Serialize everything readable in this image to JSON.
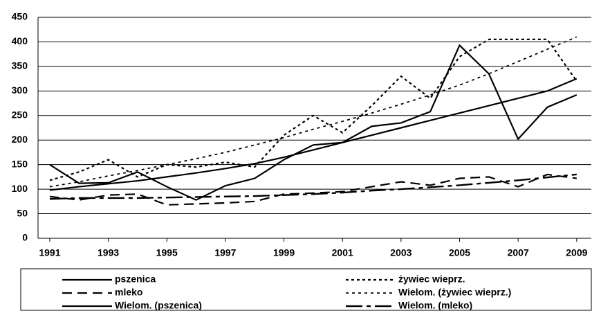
{
  "chart_data": {
    "type": "line",
    "x": [
      1991,
      1992,
      1993,
      1994,
      1995,
      1996,
      1997,
      1998,
      1999,
      2000,
      2001,
      2002,
      2003,
      2004,
      2005,
      2006,
      2007,
      2008,
      2009
    ],
    "xlim": [
      1990.6,
      2009.5
    ],
    "xticks": [
      1991,
      1993,
      1995,
      1997,
      1999,
      2001,
      2003,
      2005,
      2007,
      2009
    ],
    "ylim": [
      0,
      450
    ],
    "yticks": [
      0,
      50,
      100,
      150,
      200,
      250,
      300,
      350,
      400,
      450
    ],
    "grid": true,
    "series": [
      {
        "name": "pszenica",
        "color": "#000000",
        "values": [
          150,
          112,
          113,
          135,
          105,
          78,
          107,
          122,
          160,
          190,
          195,
          228,
          235,
          258,
          393,
          335,
          202,
          267,
          292
        ]
      },
      {
        "name": "żywiec wieprz.",
        "color": "#000000",
        "values": [
          118,
          135,
          160,
          125,
          150,
          145,
          155,
          145,
          210,
          250,
          215,
          270,
          330,
          285,
          370,
          405,
          405,
          405,
          320
        ]
      },
      {
        "name": "mleko",
        "color": "#000000",
        "values": [
          85,
          78,
          88,
          90,
          68,
          70,
          72,
          75,
          90,
          92,
          95,
          105,
          115,
          108,
          122,
          125,
          105,
          130,
          122
        ]
      },
      {
        "name": "Wielom. (żywiec wieprz.)",
        "color": "#000000",
        "values": [
          105,
          115,
          127,
          138,
          150,
          162,
          175,
          190,
          205,
          222,
          238,
          255,
          273,
          292,
          312,
          335,
          360,
          385,
          410
        ]
      },
      {
        "name": "Wielom. (pszenica)",
        "color": "#000000",
        "values": [
          98,
          105,
          111,
          117,
          125,
          133,
          142,
          152,
          165,
          180,
          195,
          210,
          225,
          240,
          255,
          270,
          285,
          300,
          325
        ]
      },
      {
        "name": "Wielom. (mleko)",
        "color": "#000000",
        "values": [
          80,
          82,
          82,
          82,
          83,
          84,
          85,
          86,
          88,
          90,
          93,
          97,
          100,
          104,
          108,
          113,
          118,
          124,
          130
        ]
      }
    ]
  }
}
